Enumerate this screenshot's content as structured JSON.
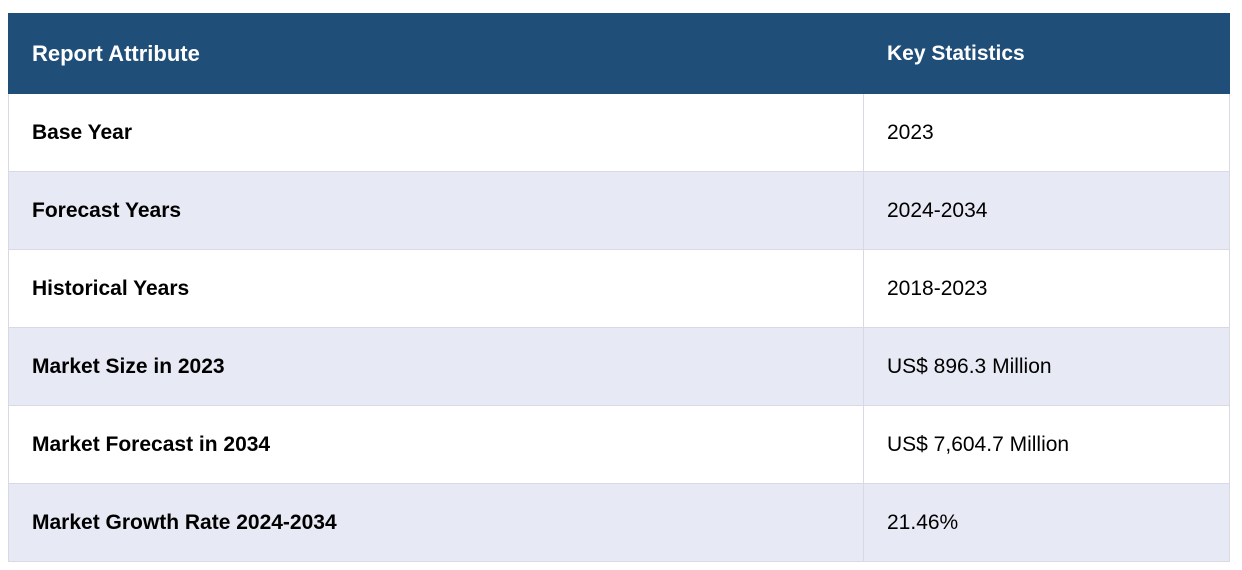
{
  "table": {
    "header": [
      "Report Attribute",
      "Key Statistics"
    ],
    "rows": [
      [
        "Base Year",
        "2023"
      ],
      [
        "Forecast Years",
        "2024-2034"
      ],
      [
        "Historical Years",
        "2018-2023"
      ],
      [
        "Market Size in 2023",
        "US$ 896.3 Million"
      ],
      [
        "Market Forecast in 2034",
        "US$ 7,604.7 Million"
      ],
      [
        "Market Growth Rate 2024-2034",
        "21.46%"
      ]
    ]
  }
}
